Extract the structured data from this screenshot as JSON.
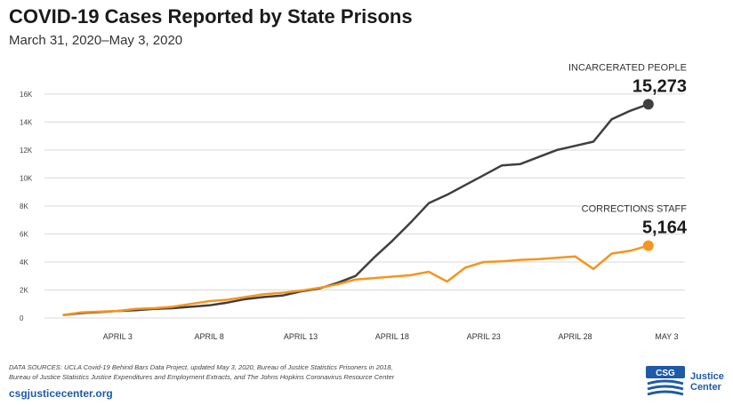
{
  "title": "COVID-19 Cases Reported by State Prisons",
  "subtitle": "March 31, 2020–May 3, 2020",
  "source_line1": "DATA SOURCES: UCLA Covid-19 Behind Bars Data Project, updated May 3, 2020, Bureau of Justice Statistics Prisoners in 2018,",
  "source_line2": "Bureau of Justice Statistics Justice Expenditures and Employment Extracts, and The Johns Hopkins Coronavirus Resource Center",
  "url": "csgjusticecenter.org",
  "logo": {
    "mark": "CSG",
    "line1": "Justice",
    "line2": "Center"
  },
  "colors": {
    "incarcerated": "#3f3f3f",
    "staff": "#f5951e",
    "grid": "#d9d9d9"
  },
  "chart_data": {
    "type": "line",
    "title": "COVID-19 Cases Reported by State Prisons",
    "subtitle": "March 31, 2020–May 3, 2020",
    "x_tick_labels": [
      "APRIL 3",
      "APRIL 8",
      "APRIL 13",
      "APRIL 18",
      "APRIL 23",
      "APRIL 28",
      "MAY 3"
    ],
    "x_tick_days": [
      3,
      8,
      13,
      18,
      23,
      28,
      33
    ],
    "xlim": [
      -1,
      34
    ],
    "y_tick_labels": [
      "0",
      "2K",
      "4K",
      "6K",
      "8K",
      "10K",
      "12K",
      "14K",
      "16K"
    ],
    "y_tick_values": [
      0,
      2000,
      4000,
      6000,
      8000,
      10000,
      12000,
      14000,
      16000
    ],
    "ylim": [
      0,
      16500
    ],
    "grid": true,
    "series": [
      {
        "name": "INCARCERATED PEOPLE",
        "end_label": "15,273",
        "x": [
          0,
          1,
          2,
          3,
          4,
          5,
          6,
          7,
          8,
          9,
          10,
          11,
          12,
          13,
          14,
          15,
          16,
          17,
          18,
          19,
          20,
          21,
          22,
          23,
          24,
          25,
          26,
          27,
          28,
          29,
          30,
          31,
          32
        ],
        "values": [
          200,
          350,
          420,
          500,
          550,
          650,
          700,
          800,
          900,
          1100,
          1350,
          1500,
          1600,
          1900,
          2100,
          2500,
          3000,
          4300,
          5500,
          6800,
          8200,
          8800,
          9500,
          10200,
          10900,
          11000,
          11500,
          12000,
          12300,
          12600,
          14200,
          14800,
          15273
        ]
      },
      {
        "name": "CORRECTIONS STAFF",
        "end_label": "5,164",
        "x": [
          0,
          1,
          2,
          3,
          4,
          5,
          6,
          7,
          8,
          9,
          10,
          11,
          12,
          13,
          14,
          15,
          16,
          17,
          18,
          19,
          20,
          21,
          22,
          23,
          24,
          25,
          26,
          27,
          28,
          29,
          30,
          31,
          32
        ],
        "values": [
          200,
          400,
          450,
          500,
          650,
          700,
          800,
          1000,
          1200,
          1300,
          1500,
          1700,
          1800,
          1950,
          2150,
          2400,
          2750,
          2850,
          2950,
          3050,
          3300,
          2600,
          3600,
          4000,
          4050,
          4150,
          4200,
          4300,
          4400,
          3500,
          4600,
          4800,
          5164
        ]
      }
    ]
  }
}
